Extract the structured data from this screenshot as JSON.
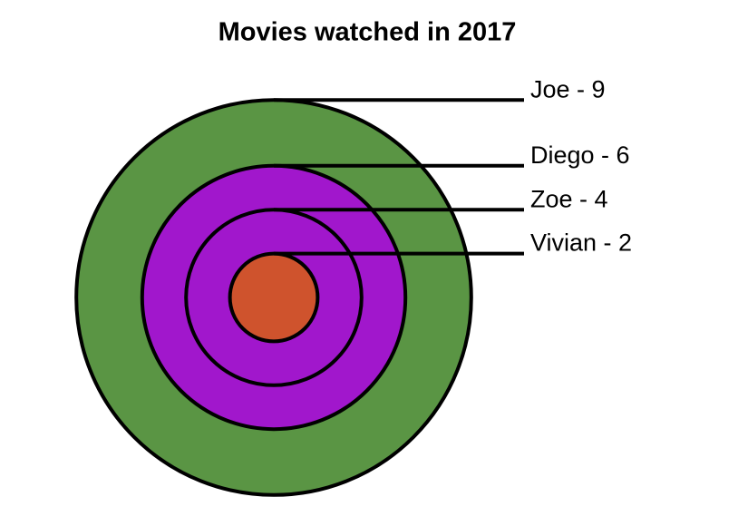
{
  "chart_data": {
    "type": "concentric",
    "title": "Movies watched in 2017",
    "values": [
      9,
      6,
      4,
      2
    ],
    "value_labels": [
      "Joe - 9",
      "Diego - 6",
      "Zoe - 4",
      "Vivian - 2"
    ],
    "colors": [
      "#5a9544",
      "#a117cc",
      "#a117cc",
      "#cf532d"
    ]
  }
}
